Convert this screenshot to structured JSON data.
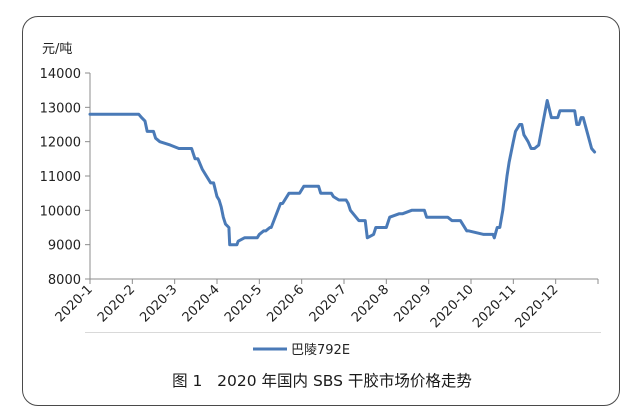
{
  "caption": "图 1   2020 年国内 SBS 干胶市场价格走势",
  "chart_data": {
    "type": "line",
    "title": "",
    "xlabel": "",
    "ylabel": "元/吨",
    "ylim": [
      8000,
      14000
    ],
    "yticks": [
      8000,
      9000,
      10000,
      11000,
      12000,
      13000,
      14000
    ],
    "xlim": [
      0,
      12
    ],
    "xticks": [
      "2020-1",
      "2020-2",
      "2020-3",
      "2020-4",
      "2020-5",
      "2020-6",
      "2020-7",
      "2020-8",
      "2020-9",
      "2020-10",
      "2020-11",
      "2020-12"
    ],
    "grid": false,
    "legend_position": "bottom",
    "color": "#4a7ab7",
    "series": [
      {
        "name": "巴陵792E",
        "x": [
          0,
          1.15,
          1.22,
          1.3,
          1.35,
          1.5,
          1.55,
          1.65,
          1.9,
          2.1,
          2.4,
          2.48,
          2.55,
          2.65,
          2.75,
          2.85,
          2.92,
          3.0,
          3.05,
          3.1,
          3.15,
          3.2,
          3.28,
          3.3,
          3.47,
          3.5,
          3.65,
          3.7,
          3.95,
          4.0,
          4.1,
          4.15,
          4.25,
          4.28,
          4.5,
          4.55,
          4.7,
          4.75,
          4.95,
          5.05,
          5.1,
          5.4,
          5.45,
          5.7,
          5.75,
          5.88,
          5.92,
          6.05,
          6.1,
          6.15,
          6.35,
          6.38,
          6.5,
          6.55,
          6.7,
          6.75,
          7.0,
          7.08,
          7.3,
          7.38,
          7.6,
          7.65,
          7.9,
          7.95,
          8.1,
          8.15,
          8.45,
          8.55,
          8.75,
          8.9,
          8.95,
          9.3,
          9.35,
          9.4,
          9.45,
          9.52,
          9.55,
          9.62,
          9.68,
          9.75,
          9.85,
          9.9,
          10.0,
          10.05,
          10.15,
          10.2,
          10.25,
          10.3,
          10.35,
          10.42,
          10.5,
          10.6,
          10.8,
          10.9,
          10.93,
          11.05,
          11.1,
          11.3,
          11.45,
          11.5,
          11.55,
          11.6,
          11.65,
          11.85,
          11.92
        ],
        "y": [
          12800,
          12800,
          12700,
          12600,
          12300,
          12300,
          12100,
          12000,
          11900,
          11800,
          11800,
          11500,
          11500,
          11200,
          11000,
          10800,
          10800,
          10400,
          10300,
          10100,
          9800,
          9600,
          9500,
          9000,
          9000,
          9100,
          9200,
          9200,
          9200,
          9300,
          9400,
          9400,
          9500,
          9500,
          10200,
          10200,
          10500,
          10500,
          10500,
          10700,
          10700,
          10700,
          10500,
          10500,
          10400,
          10300,
          10300,
          10300,
          10200,
          10000,
          9700,
          9700,
          9700,
          9200,
          9300,
          9500,
          9500,
          9800,
          9900,
          9900,
          10000,
          10000,
          10000,
          9800,
          9800,
          9800,
          9800,
          9700,
          9700,
          9400,
          9400,
          9300,
          9300,
          9300,
          9300,
          9300,
          9200,
          9500,
          9500,
          10000,
          11000,
          11400,
          12000,
          12300,
          12500,
          12500,
          12200,
          12100,
          12000,
          11800,
          11800,
          11900,
          13200,
          12700,
          12700,
          12700,
          12900,
          12900,
          12900,
          12500,
          12500,
          12700,
          12700,
          11800,
          11700
        ]
      }
    ]
  }
}
